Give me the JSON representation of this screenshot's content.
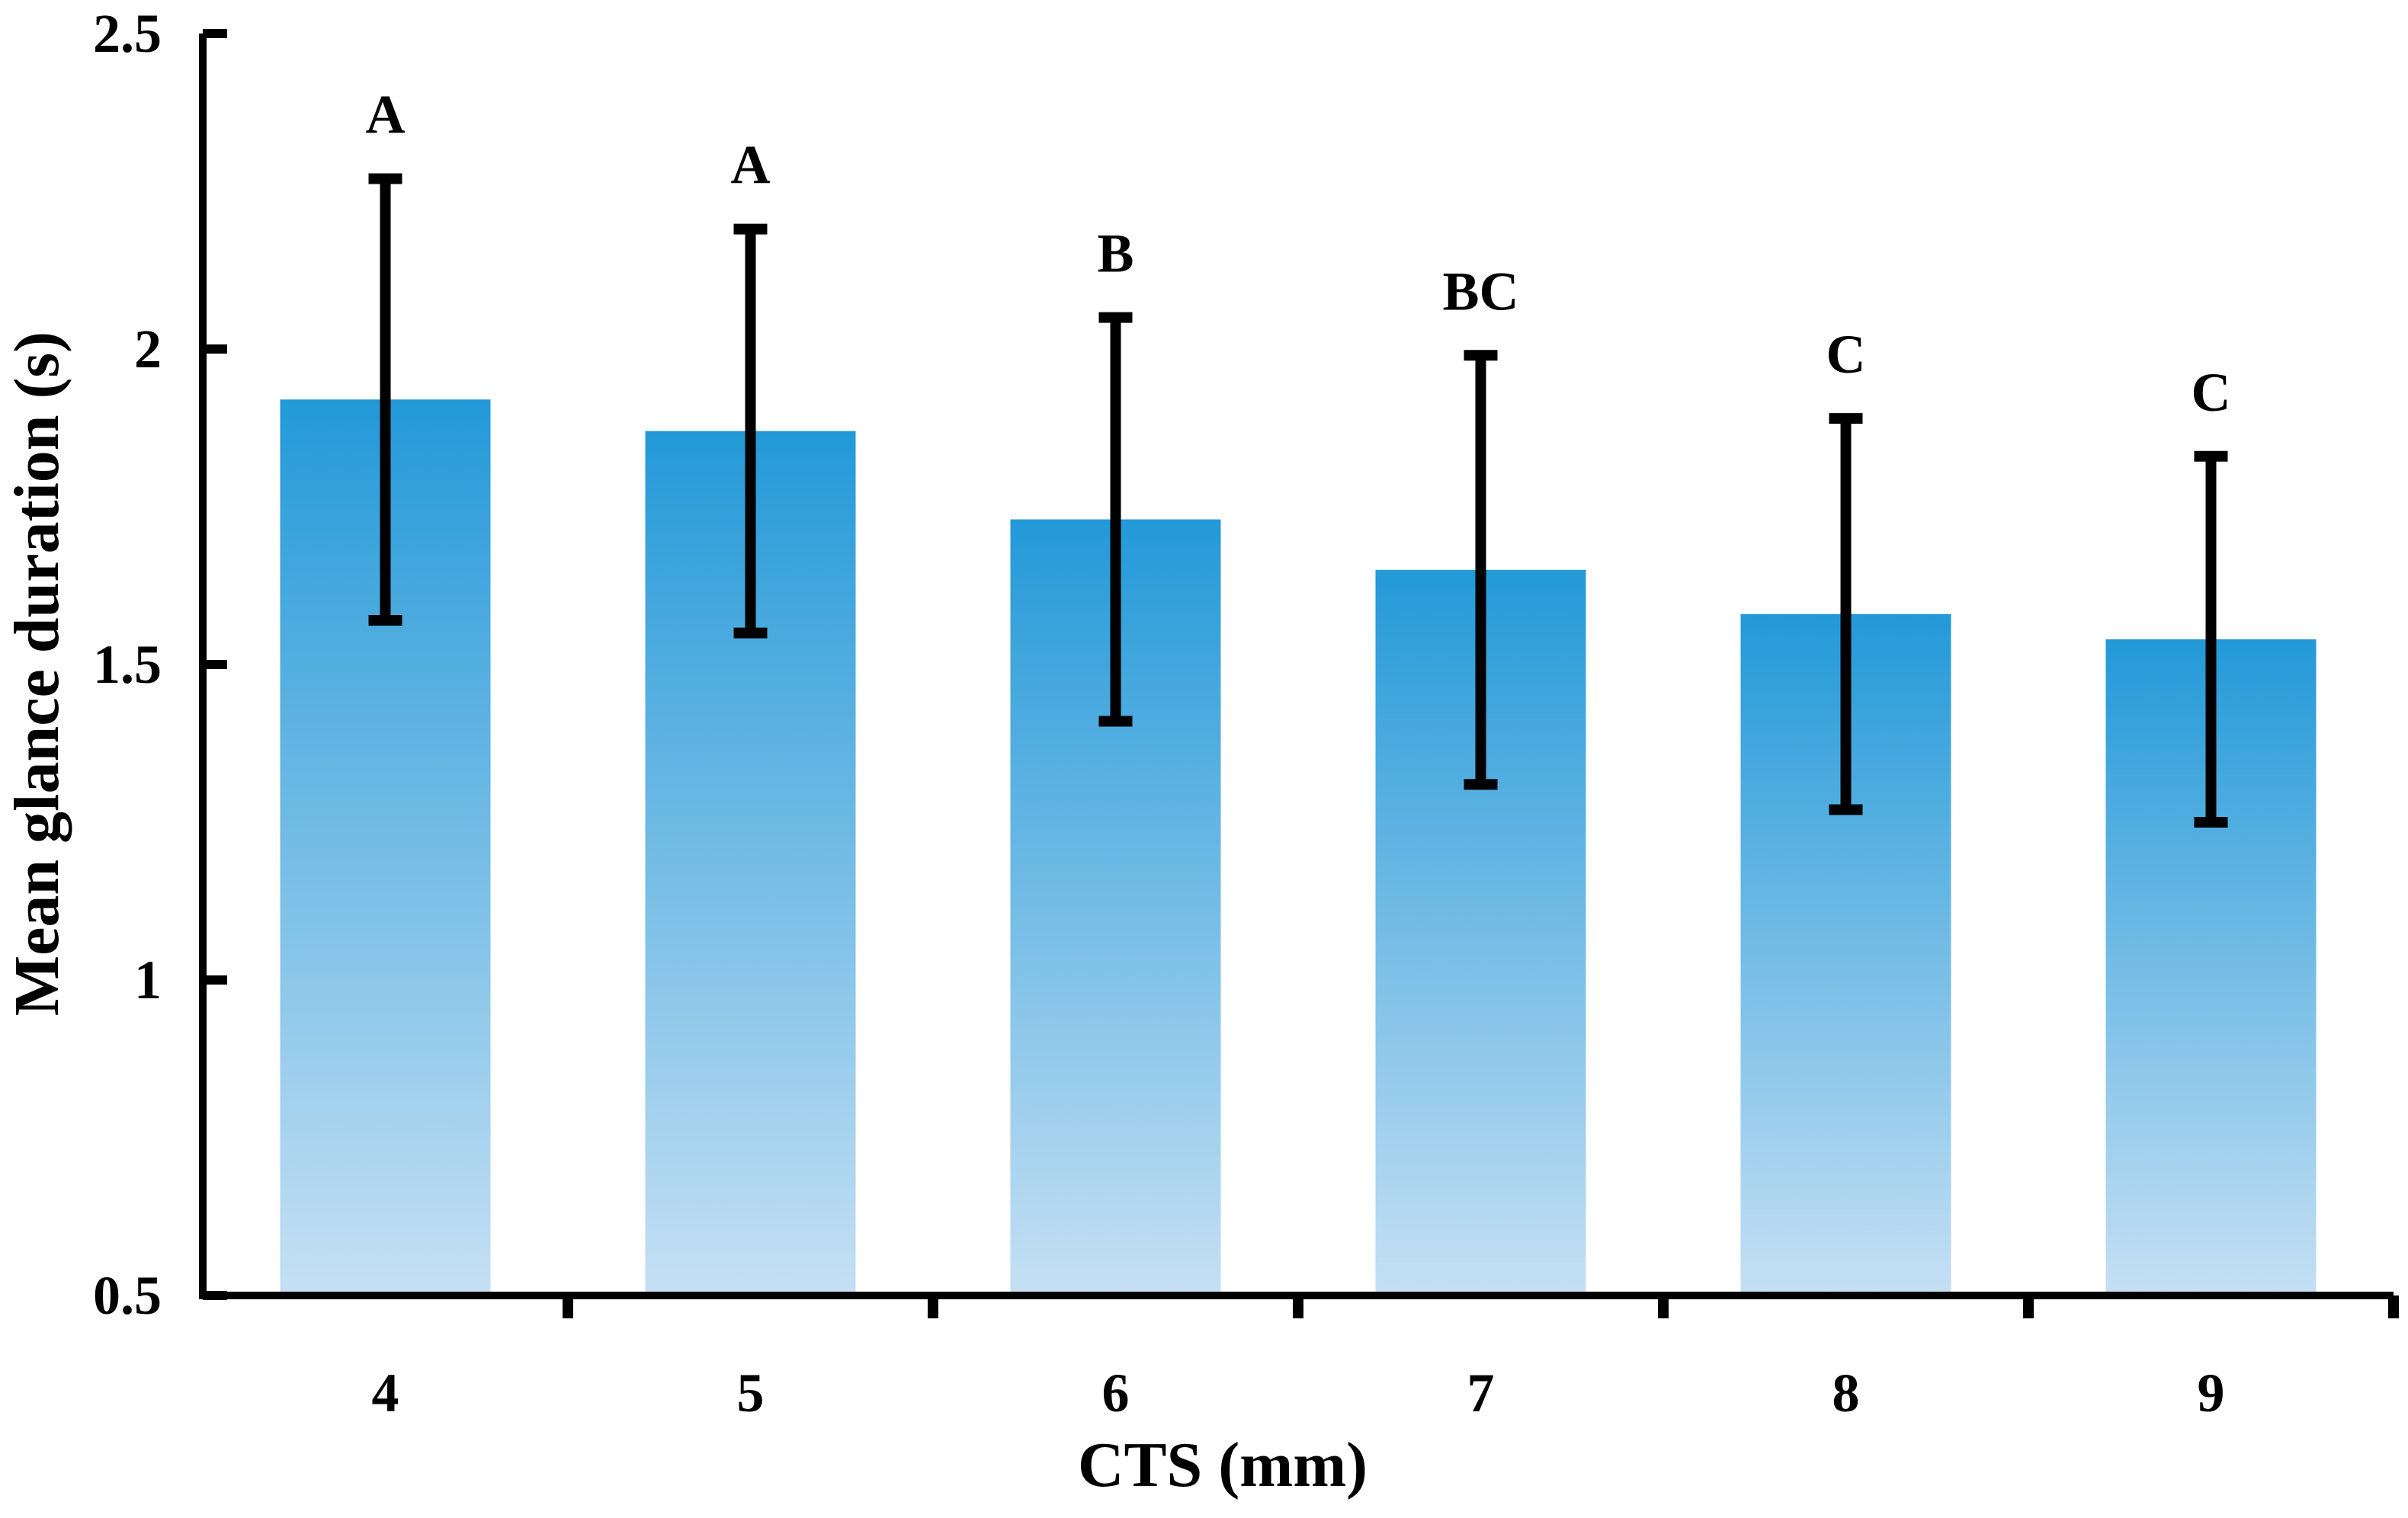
{
  "chart_data": {
    "type": "bar",
    "title": "",
    "xlabel": "CTS (mm)",
    "ylabel": "Mean glance duration (s)",
    "categories": [
      "4",
      "5",
      "6",
      "7",
      "8",
      "9"
    ],
    "values": [
      1.92,
      1.87,
      1.73,
      1.65,
      1.58,
      1.54
    ],
    "error_low": [
      1.57,
      1.55,
      1.41,
      1.31,
      1.27,
      1.25
    ],
    "error_high": [
      2.27,
      2.19,
      2.05,
      1.99,
      1.89,
      1.83
    ],
    "group_labels": [
      "A",
      "A",
      "B",
      "BC",
      "C",
      "C"
    ],
    "ylim": [
      0.5,
      2.5
    ],
    "yticks": [
      0.5,
      1,
      1.5,
      2,
      2.5
    ],
    "ytick_labels": [
      "0.5",
      "1",
      "1.5",
      "2",
      "2.5"
    ],
    "grid": false,
    "legend": "none",
    "bar_color_top": "#2399d8",
    "bar_color_bottom": "#c6e0f4",
    "error_bar_color": "#000000",
    "axis_color": "#000000"
  }
}
